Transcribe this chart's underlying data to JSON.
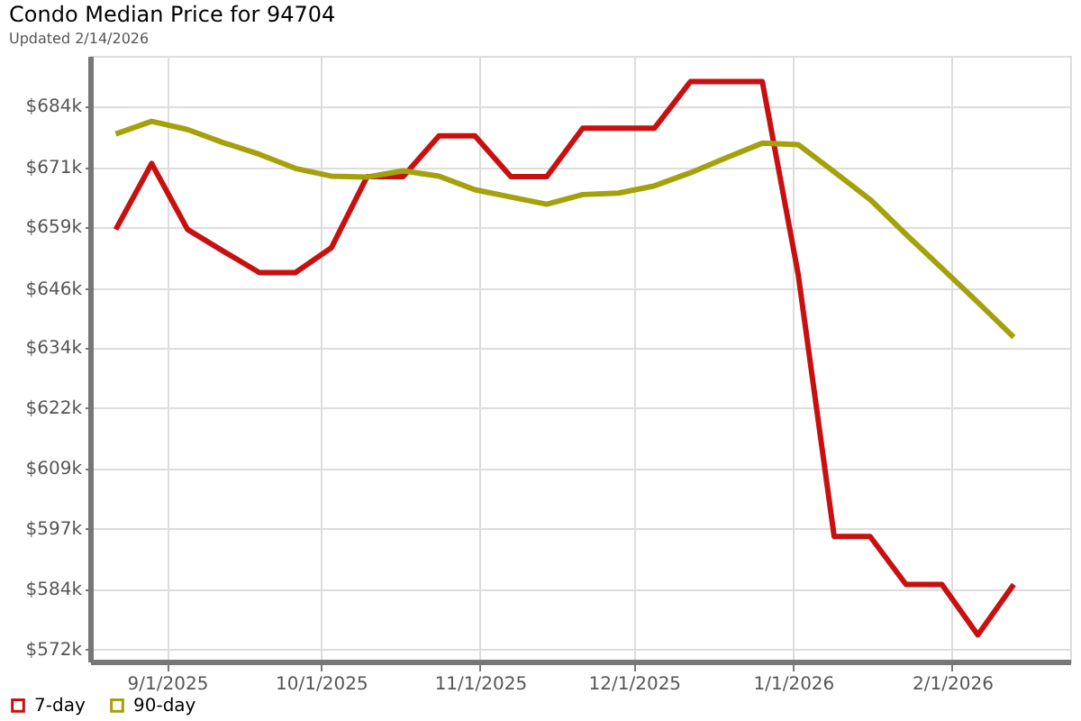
{
  "chart_data": {
    "type": "line",
    "title": "Condo Median Price for 94704",
    "subtitle": "Updated 2/14/2026",
    "x": [
      "2025-08-22",
      "2025-08-29",
      "2025-09-05",
      "2025-09-12",
      "2025-09-19",
      "2025-09-26",
      "2025-10-03",
      "2025-10-10",
      "2025-10-17",
      "2025-10-24",
      "2025-10-31",
      "2025-11-07",
      "2025-11-14",
      "2025-11-21",
      "2025-11-28",
      "2025-12-05",
      "2025-12-12",
      "2025-12-19",
      "2025-12-26",
      "2026-01-02",
      "2026-01-09",
      "2026-01-16",
      "2026-01-23",
      "2026-01-30",
      "2026-02-06",
      "2026-02-13"
    ],
    "series": [
      {
        "name": "7-day",
        "color": "#c81010",
        "values": [
          658.5,
          672.1,
          658.5,
          654.0,
          649.6,
          649.6,
          654.7,
          669.4,
          669.4,
          677.8,
          677.8,
          669.4,
          669.4,
          679.4,
          679.4,
          679.4,
          689.0,
          689.0,
          689.0,
          649.2,
          595.2,
          595.2,
          585.3,
          585.3,
          574.9,
          585.3
        ]
      },
      {
        "name": "90-day",
        "color": "#a3a10c",
        "values": [
          678.2,
          680.8,
          679.1,
          676.4,
          674.0,
          671.1,
          669.5,
          669.3,
          670.6,
          669.5,
          666.7,
          665.2,
          663.7,
          665.7,
          666.0,
          667.5,
          670.2,
          673.3,
          676.3,
          676.0,
          670.4,
          664.7,
          657.5,
          650.5,
          643.5,
          636.3
        ]
      }
    ],
    "xlim": [
      "2025-08-17",
      "2026-02-24"
    ],
    "xticks": [
      {
        "value": "2025-09-01",
        "label": "9/1/2025"
      },
      {
        "value": "2025-10-01",
        "label": "10/1/2025"
      },
      {
        "value": "2025-11-01",
        "label": "11/1/2025"
      },
      {
        "value": "2025-12-01",
        "label": "12/1/2025"
      },
      {
        "value": "2026-01-01",
        "label": "1/1/2026"
      },
      {
        "value": "2026-02-01",
        "label": "2/1/2026"
      }
    ],
    "ylim": [
      569.4,
      694.3
    ],
    "yticks": [
      {
        "value": 572,
        "label": "$572k"
      },
      {
        "value": 584.444,
        "label": "$584k"
      },
      {
        "value": 596.889,
        "label": "$597k"
      },
      {
        "value": 609.333,
        "label": "$609k"
      },
      {
        "value": 621.778,
        "label": "$622k"
      },
      {
        "value": 634.222,
        "label": "$634k"
      },
      {
        "value": 646.4,
        "label": "$646k"
      },
      {
        "value": 659.111,
        "label": "$659k"
      },
      {
        "value": 671.4,
        "label": "$671k"
      },
      {
        "value": 684,
        "label": "$684k"
      }
    ],
    "grid": true,
    "legend": "bottom left",
    "marker": "none",
    "line_style": "solid"
  }
}
